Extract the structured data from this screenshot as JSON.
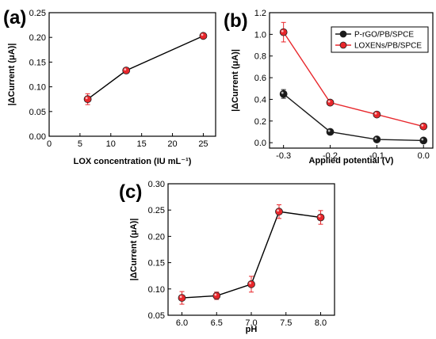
{
  "chart_data": [
    {
      "panel": "(a)",
      "type": "line",
      "xlabel": "LOX concentration (IU mL⁻¹)",
      "ylabel": "|ΔCurrent (μA)|",
      "xlim": [
        0,
        27
      ],
      "ylim": [
        0,
        0.25
      ],
      "xticks": [
        0,
        5,
        10,
        15,
        20,
        25
      ],
      "yticks": [
        0.0,
        0.05,
        0.1,
        0.15,
        0.2,
        0.25
      ],
      "xtick_labels": [
        "0",
        "5",
        "10",
        "15",
        "20",
        "25"
      ],
      "ytick_labels": [
        "0.00",
        "0.05",
        "0.10",
        "0.15",
        "0.20",
        "0.25"
      ],
      "grid": false,
      "legend": "none",
      "series": [
        {
          "color": "#e8262b",
          "x": [
            6.25,
            12.5,
            25
          ],
          "values": [
            0.075,
            0.133,
            0.203
          ],
          "errors": [
            0.011,
            0.003,
            0.005
          ]
        }
      ]
    },
    {
      "panel": "(b)",
      "type": "line",
      "xlabel": "Applied potential (V)",
      "ylabel": "|ΔCurrent (μA)|",
      "xlim": [
        -0.33,
        0.02
      ],
      "ylim": [
        -0.05,
        1.2
      ],
      "xticks": [
        -0.3,
        -0.2,
        -0.1,
        0.0
      ],
      "yticks": [
        0.0,
        0.2,
        0.4,
        0.6,
        0.8,
        1.0,
        1.2
      ],
      "xtick_labels": [
        "-0.3",
        "-0.2",
        "-0.1",
        "0.0"
      ],
      "ytick_labels": [
        "0.0",
        "0.2",
        "0.4",
        "0.6",
        "0.8",
        "1.0",
        "1.2"
      ],
      "grid": false,
      "legend": "top-right",
      "series": [
        {
          "name": "P-rGO/PB/SPCE",
          "color": "#1a1a1a",
          "x": [
            -0.3,
            -0.2,
            -0.1,
            0.0
          ],
          "values": [
            0.45,
            0.1,
            0.03,
            0.02
          ],
          "errors": [
            0.04,
            0.01,
            0.01,
            0.01
          ]
        },
        {
          "name": "LOXENs/PB/SPCE",
          "color": "#e8262b",
          "x": [
            -0.3,
            -0.2,
            -0.1,
            0.0
          ],
          "values": [
            1.02,
            0.37,
            0.26,
            0.15
          ],
          "errors": [
            0.09,
            0.02,
            0.01,
            0.01
          ]
        }
      ]
    },
    {
      "panel": "(c)",
      "type": "line",
      "xlabel": "pH",
      "ylabel": "|ΔCurrent (μA)|",
      "xlim": [
        5.8,
        8.2
      ],
      "ylim": [
        0.05,
        0.3
      ],
      "xticks": [
        6.0,
        6.5,
        7.0,
        7.5,
        8.0
      ],
      "yticks": [
        0.05,
        0.1,
        0.15,
        0.2,
        0.25,
        0.3
      ],
      "xtick_labels": [
        "6.0",
        "6.5",
        "7.0",
        "7.5",
        "8.0"
      ],
      "ytick_labels": [
        "0.05",
        "0.10",
        "0.15",
        "0.20",
        "0.25",
        "0.30"
      ],
      "grid": false,
      "legend": "none",
      "series": [
        {
          "color": "#e8262b",
          "x": [
            6.0,
            6.5,
            7.0,
            7.4,
            8.0
          ],
          "values": [
            0.083,
            0.087,
            0.109,
            0.247,
            0.236
          ],
          "errors": [
            0.012,
            0.007,
            0.015,
            0.013,
            0.013
          ]
        }
      ]
    }
  ]
}
